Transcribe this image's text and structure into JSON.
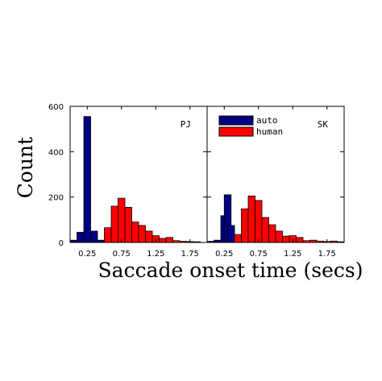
{
  "chart_data": {
    "type": "bar",
    "xlabel": "Saccade onset time (secs)",
    "ylabel": "Count",
    "ylim": [
      0,
      600
    ],
    "y_ticks": [
      "0",
      "200",
      "400",
      "600"
    ],
    "x_ticks": [
      "0.25",
      "0.75",
      "1.25",
      "1.75"
    ],
    "legend": {
      "placement": "top-left of right panel",
      "entries": [
        "auto",
        "human"
      ]
    },
    "colors": {
      "auto": "#000080",
      "human": "#ff0000"
    },
    "grid": false,
    "panels": [
      {
        "label": "PJ",
        "xlim": [
          0,
          2.0
        ],
        "bin_width": 0.1,
        "series": [
          {
            "name": "auto",
            "bins": [
              {
                "x": 0.05,
                "value": 10
              },
              {
                "x": 0.15,
                "value": 45
              },
              {
                "x": 0.25,
                "value": 555
              },
              {
                "x": 0.35,
                "value": 50
              },
              {
                "x": 0.45,
                "value": 10
              }
            ]
          },
          {
            "name": "human",
            "bins": [
              {
                "x": 0.55,
                "value": 65
              },
              {
                "x": 0.65,
                "value": 160
              },
              {
                "x": 0.75,
                "value": 195
              },
              {
                "x": 0.85,
                "value": 155
              },
              {
                "x": 0.95,
                "value": 90
              },
              {
                "x": 1.05,
                "value": 75
              },
              {
                "x": 1.15,
                "value": 50
              },
              {
                "x": 1.25,
                "value": 30
              },
              {
                "x": 1.35,
                "value": 18
              },
              {
                "x": 1.45,
                "value": 22
              },
              {
                "x": 1.55,
                "value": 8
              },
              {
                "x": 1.65,
                "value": 5
              },
              {
                "x": 1.75,
                "value": 4
              },
              {
                "x": 1.85,
                "value": 3
              }
            ]
          }
        ]
      },
      {
        "label": "SK",
        "xlim": [
          0,
          2.0
        ],
        "bin_width": 0.1,
        "series": [
          {
            "name": "auto",
            "bins": [
              {
                "x": 0.05,
                "value": 5
              },
              {
                "x": 0.15,
                "value": 10
              },
              {
                "x": 0.25,
                "value": 118
              },
              {
                "x": 0.3,
                "value": 210
              },
              {
                "x": 0.35,
                "value": 75
              },
              {
                "x": 0.45,
                "value": 20
              },
              {
                "x": 0.55,
                "value": 5
              }
            ]
          },
          {
            "name": "human",
            "bins": [
              {
                "x": 0.45,
                "value": 35
              },
              {
                "x": 0.55,
                "value": 148
              },
              {
                "x": 0.65,
                "value": 205
              },
              {
                "x": 0.75,
                "value": 185
              },
              {
                "x": 0.85,
                "value": 110
              },
              {
                "x": 0.95,
                "value": 78
              },
              {
                "x": 1.05,
                "value": 50
              },
              {
                "x": 1.15,
                "value": 28
              },
              {
                "x": 1.25,
                "value": 30
              },
              {
                "x": 1.35,
                "value": 22
              },
              {
                "x": 1.45,
                "value": 8
              },
              {
                "x": 1.55,
                "value": 10
              },
              {
                "x": 1.65,
                "value": 6
              },
              {
                "x": 1.75,
                "value": 4
              },
              {
                "x": 1.85,
                "value": 6
              },
              {
                "x": 1.95,
                "value": 3
              }
            ]
          }
        ]
      }
    ]
  }
}
